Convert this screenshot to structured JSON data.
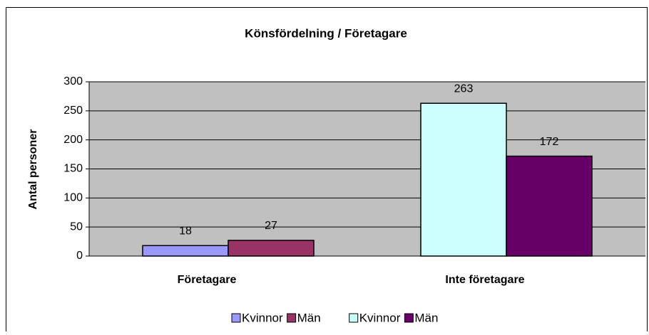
{
  "chart_data": {
    "type": "bar",
    "title": "Könsfördelning / Företagare",
    "y_label": "Antal personer",
    "categories": [
      "Företagare",
      "Inte företagare"
    ],
    "series": [
      {
        "name": "Kvinnor",
        "color": "#9999ff",
        "values": [
          18,
          null
        ]
      },
      {
        "name": "Män",
        "color": "#993366",
        "values": [
          27,
          null
        ]
      },
      {
        "name": "Kvinnor",
        "color": "#ccffff",
        "values": [
          null,
          263
        ]
      },
      {
        "name": "Män",
        "color": "#660066",
        "values": [
          null,
          172
        ]
      }
    ],
    "ylim": [
      0,
      300
    ],
    "yticks": [
      0,
      50,
      100,
      150,
      200,
      250,
      300
    ],
    "grid": true,
    "legend": "bottom"
  }
}
